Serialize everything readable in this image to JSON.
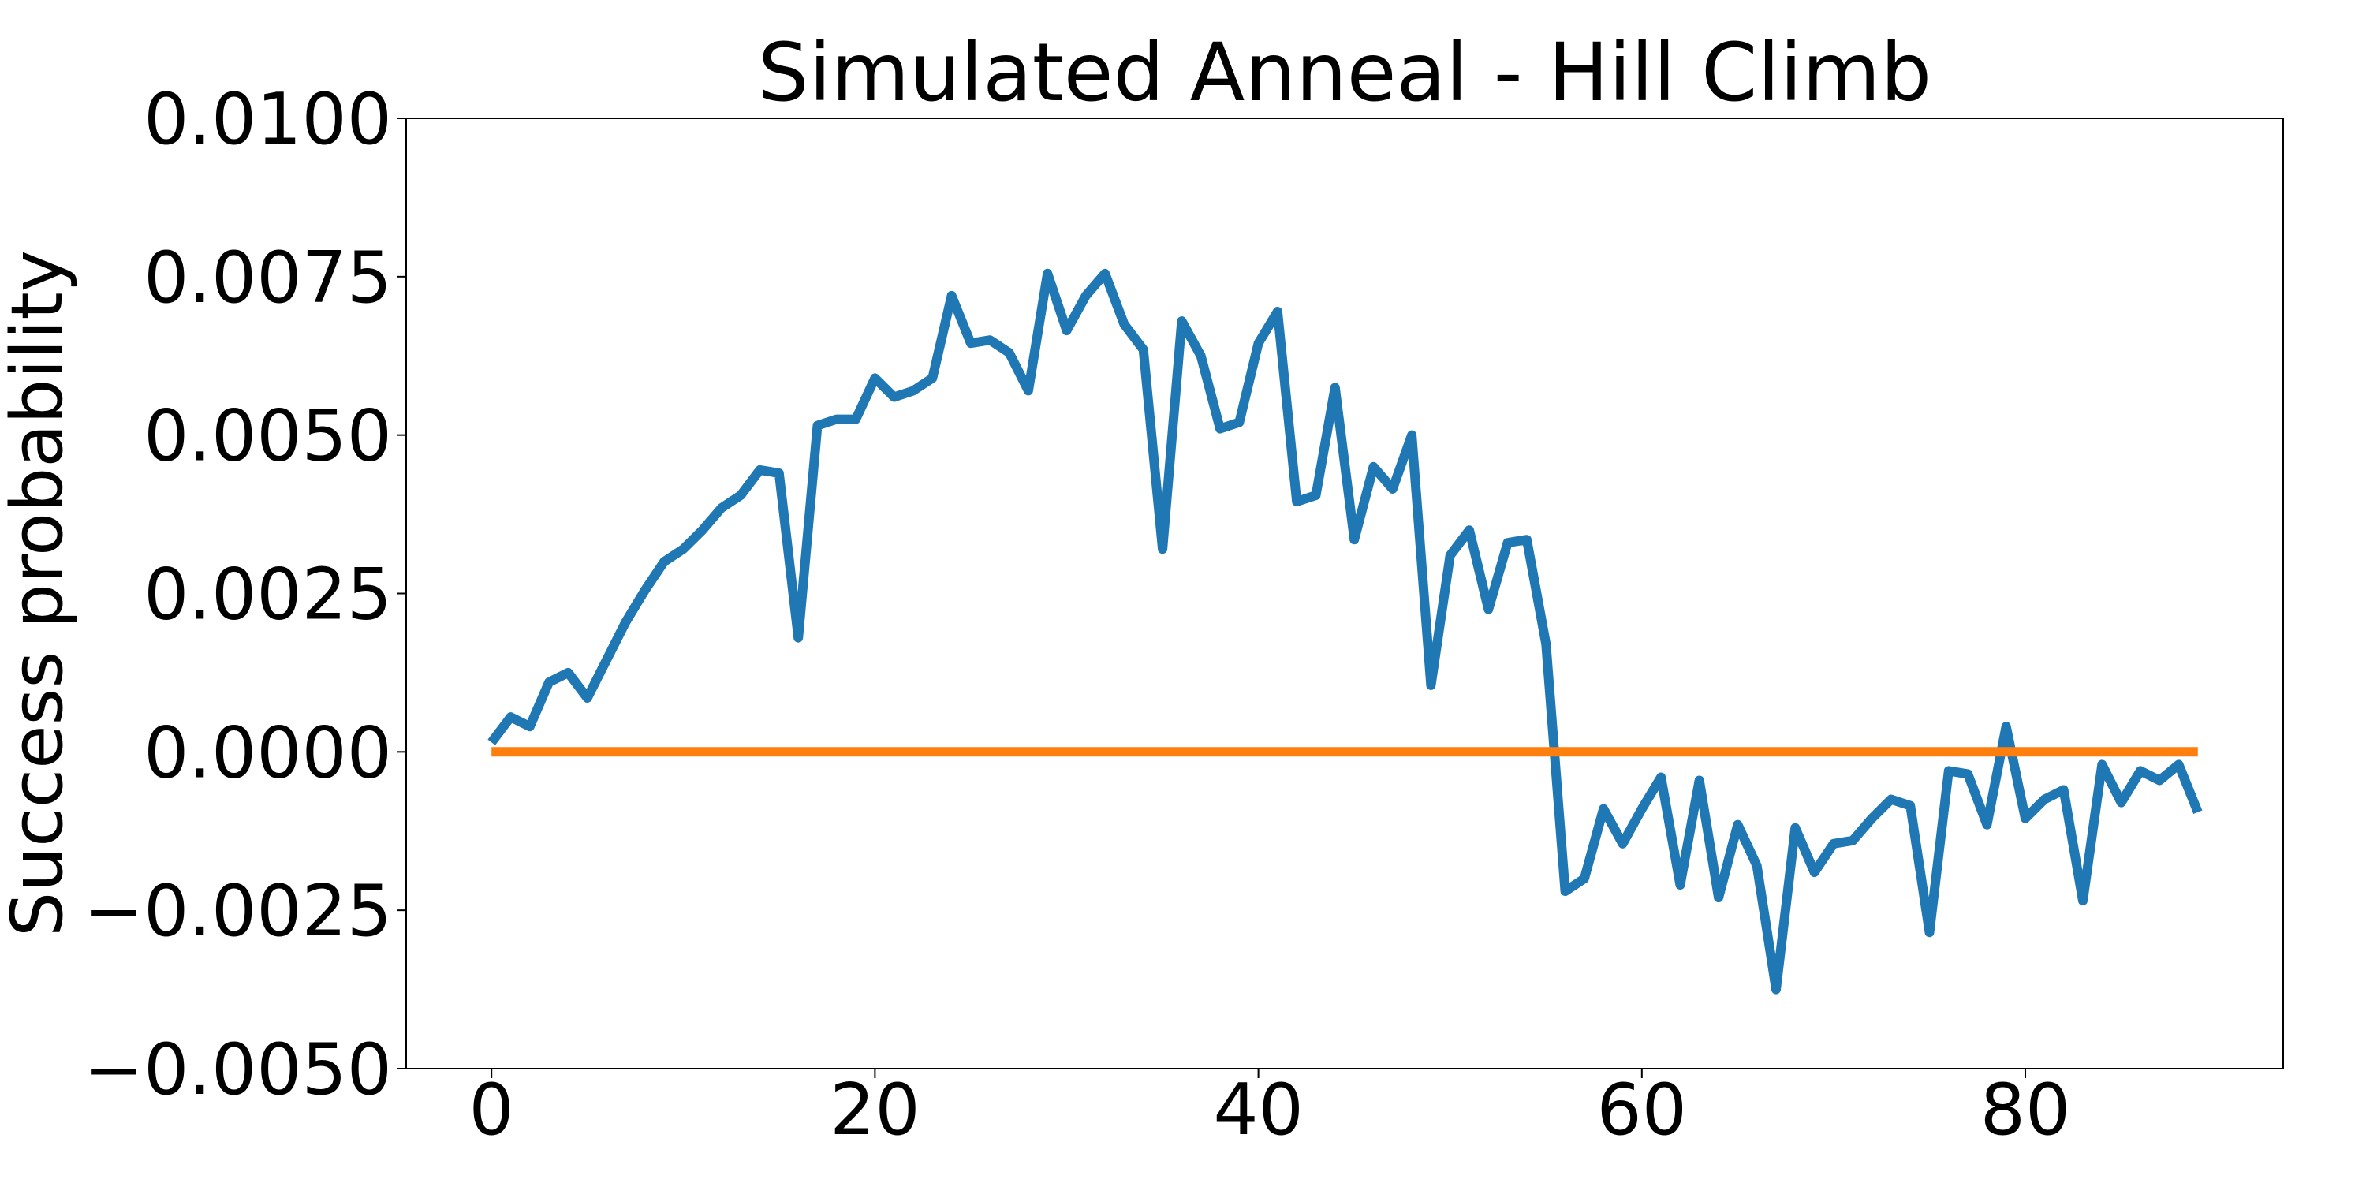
{
  "chart_data": {
    "type": "line",
    "title": "Simulated Anneal - Hill Climb",
    "xlabel": "",
    "ylabel": "Success probability",
    "xlim": [
      -4.45,
      93.45
    ],
    "ylim": [
      -0.005,
      0.01
    ],
    "xticks": [
      0,
      20,
      40,
      60,
      80
    ],
    "xtick_labels": [
      "0",
      "20",
      "40",
      "60",
      "80"
    ],
    "yticks": [
      -0.005,
      -0.0025,
      0.0,
      0.0025,
      0.005,
      0.0075,
      0.01
    ],
    "ytick_labels": [
      "−0.0050",
      "−0.0025",
      "0.0000",
      "0.0025",
      "0.0050",
      "0.0075",
      "0.0100"
    ],
    "grid": false,
    "legend": "none",
    "series": [
      {
        "color": "#1f77b4",
        "x": [
          0,
          1,
          2,
          3,
          4,
          5,
          6,
          7,
          8,
          9,
          10,
          11,
          12,
          13,
          14,
          15,
          16,
          17,
          18,
          19,
          20,
          21,
          22,
          23,
          24,
          25,
          26,
          27,
          28,
          29,
          30,
          31,
          32,
          33,
          34,
          35,
          36,
          37,
          38,
          39,
          40,
          41,
          42,
          43,
          44,
          45,
          46,
          47,
          48,
          49,
          50,
          51,
          52,
          53,
          54,
          55,
          56,
          57,
          58,
          59,
          60,
          61,
          62,
          63,
          64,
          65,
          66,
          67,
          68,
          69,
          70,
          71,
          72,
          73,
          74,
          75,
          76,
          77,
          78,
          79,
          80,
          81,
          82,
          83,
          84,
          85,
          86,
          87,
          88,
          89
        ],
        "values": [
          0.00015,
          0.00055,
          0.0004,
          0.0011,
          0.00125,
          0.00085,
          0.00145,
          0.00205,
          0.00255,
          0.003,
          0.0032,
          0.0035,
          0.00385,
          0.00405,
          0.00445,
          0.0044,
          0.0018,
          0.00515,
          0.00525,
          0.00525,
          0.0059,
          0.0056,
          0.0057,
          0.0059,
          0.0072,
          0.00645,
          0.0065,
          0.0063,
          0.0057,
          0.00755,
          0.00665,
          0.0072,
          0.00755,
          0.00675,
          0.00635,
          0.0032,
          0.0068,
          0.00625,
          0.0051,
          0.0052,
          0.00645,
          0.00695,
          0.00395,
          0.00405,
          0.00575,
          0.00335,
          0.0045,
          0.00415,
          0.005,
          0.00105,
          0.0031,
          0.0035,
          0.00225,
          0.0033,
          0.00335,
          0.0017,
          -0.0022,
          -0.002,
          -0.0009,
          -0.00145,
          -0.0009,
          -0.0004,
          -0.0021,
          -0.00045,
          -0.0023,
          -0.00115,
          -0.0018,
          -0.00375,
          -0.0012,
          -0.0019,
          -0.00145,
          -0.0014,
          -0.00105,
          -0.00075,
          -0.00085,
          -0.00285,
          -0.0003,
          -0.00035,
          -0.00115,
          0.0004,
          -0.00105,
          -0.00075,
          -0.0006,
          -0.00235,
          -0.0002,
          -0.0008,
          -0.0003,
          -0.00045,
          -0.0002,
          -0.00095
        ]
      },
      {
        "color": "#ff7f0e",
        "x": [
          0,
          89
        ],
        "values": [
          0.0,
          0.0
        ]
      }
    ]
  }
}
